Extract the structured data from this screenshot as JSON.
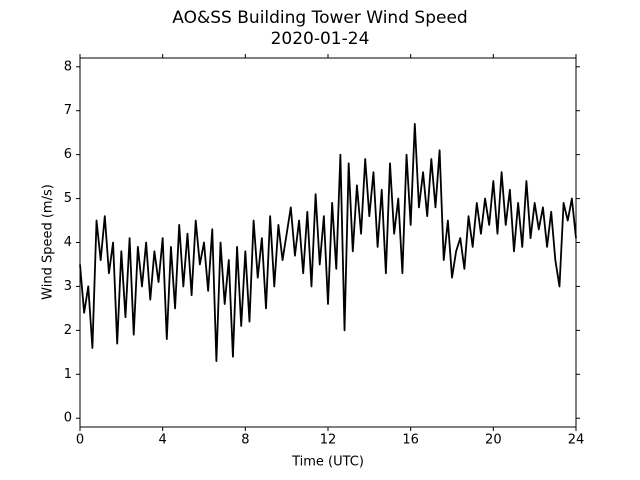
{
  "chart_data": {
    "type": "line",
    "title": "AO&SS Building Tower Wind Speed",
    "subtitle": "2020-01-24",
    "xlabel": "Time (UTC)",
    "ylabel": "Wind Speed (m/s)",
    "xlim": [
      0,
      24
    ],
    "xticks": [
      0,
      4,
      8,
      12,
      16,
      20,
      24
    ],
    "ylim": [
      -0.2,
      8.2
    ],
    "yticks": [
      0,
      1,
      2,
      3,
      4,
      5,
      6,
      7,
      8
    ],
    "color": "#000000",
    "x": [
      0,
      0.2,
      0.4,
      0.6,
      0.8,
      1,
      1.2,
      1.4,
      1.6,
      1.8,
      2,
      2.2,
      2.4,
      2.6,
      2.8,
      3,
      3.2,
      3.4,
      3.6,
      3.8,
      4,
      4.2,
      4.4,
      4.6,
      4.8,
      5,
      5.2,
      5.4,
      5.6,
      5.8,
      6,
      6.2,
      6.4,
      6.6,
      6.8,
      7,
      7.2,
      7.4,
      7.6,
      7.8,
      8,
      8.2,
      8.4,
      8.6,
      8.8,
      9,
      9.2,
      9.4,
      9.6,
      9.8,
      10,
      10.2,
      10.4,
      10.6,
      10.8,
      11,
      11.2,
      11.4,
      11.6,
      11.8,
      12,
      12.2,
      12.4,
      12.6,
      12.8,
      13,
      13.2,
      13.4,
      13.6,
      13.8,
      14,
      14.2,
      14.4,
      14.6,
      14.8,
      15,
      15.2,
      15.4,
      15.6,
      15.8,
      16,
      16.2,
      16.4,
      16.6,
      16.8,
      17,
      17.2,
      17.4,
      17.6,
      17.8,
      18,
      18.2,
      18.4,
      18.6,
      18.8,
      19,
      19.2,
      19.4,
      19.6,
      19.8,
      20,
      20.2,
      20.4,
      20.6,
      20.8,
      21,
      21.2,
      21.4,
      21.6,
      21.8,
      22,
      22.2,
      22.4,
      22.6,
      22.8,
      23,
      23.2,
      23.4,
      23.6,
      23.8,
      24
    ],
    "values": [
      3.5,
      2.4,
      3.0,
      1.6,
      4.5,
      3.6,
      4.6,
      3.3,
      4.0,
      1.7,
      3.8,
      2.3,
      4.1,
      1.9,
      3.9,
      3.0,
      4.0,
      2.7,
      3.8,
      3.1,
      4.1,
      1.8,
      3.9,
      2.5,
      4.4,
      3.0,
      4.2,
      2.8,
      4.5,
      3.5,
      4.0,
      2.9,
      4.3,
      1.3,
      4.0,
      2.6,
      3.6,
      1.4,
      3.9,
      2.1,
      3.8,
      2.2,
      4.5,
      3.2,
      4.1,
      2.5,
      4.6,
      3.0,
      4.4,
      3.6,
      4.2,
      4.8,
      3.7,
      4.5,
      3.3,
      4.7,
      3.0,
      5.1,
      3.5,
      4.6,
      2.6,
      4.9,
      3.4,
      6.0,
      2.0,
      5.8,
      3.8,
      5.3,
      4.2,
      5.9,
      4.6,
      5.6,
      3.9,
      5.2,
      3.3,
      5.8,
      4.2,
      5.0,
      3.3,
      6.0,
      4.4,
      6.7,
      4.8,
      5.6,
      4.6,
      5.9,
      4.8,
      6.1,
      3.6,
      4.5,
      3.2,
      3.8,
      4.1,
      3.4,
      4.6,
      3.9,
      4.9,
      4.2,
      5.0,
      4.4,
      5.4,
      4.2,
      5.6,
      4.4,
      5.2,
      3.8,
      4.9,
      3.9,
      5.4,
      4.1,
      4.9,
      4.3,
      4.8,
      3.9,
      4.7,
      3.6,
      3.0,
      4.9,
      4.5,
      5.0,
      4.1
    ]
  }
}
